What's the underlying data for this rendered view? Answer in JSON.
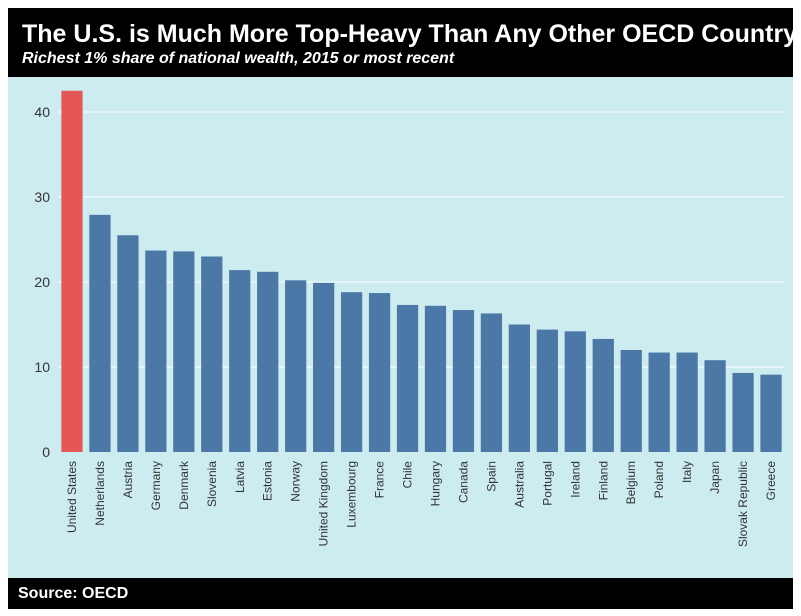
{
  "header": {
    "title": "The U.S. is Much More Top-Heavy Than Any Other OECD Country",
    "subtitle": "Richest 1% share of national wealth, 2015 or most recent"
  },
  "footer": {
    "source": "Source: OECD"
  },
  "colors": {
    "background": "#cdecf0",
    "bar": "#4c78a8",
    "highlight": "#e45756",
    "gridline": "#ffffff",
    "header": "#000000"
  },
  "chart_data": {
    "type": "bar",
    "title": "The U.S. is Much More Top-Heavy Than Any Other OECD Country",
    "subtitle": "Richest 1% share of national wealth, 2015 or most recent",
    "xlabel": "",
    "ylabel": "",
    "ylim": [
      0,
      44
    ],
    "yticks": [
      0,
      10,
      20,
      30,
      40
    ],
    "grid": true,
    "highlight_category": "United States",
    "categories": [
      "United States",
      "Netherlands",
      "Austria",
      "Germany",
      "Denmark",
      "Slovenia",
      "Latvia",
      "Estonia",
      "Norway",
      "United Kingdom",
      "Luxembourg",
      "France",
      "Chile",
      "Hungary",
      "Canada",
      "Spain",
      "Australia",
      "Portugal",
      "Ireland",
      "Finland",
      "Belgium",
      "Poland",
      "Italy",
      "Japan",
      "Slovak Republic",
      "Greece"
    ],
    "values": [
      42.5,
      27.9,
      25.5,
      23.7,
      23.6,
      23.0,
      21.4,
      21.2,
      20.2,
      19.9,
      18.8,
      18.7,
      17.3,
      17.2,
      16.7,
      16.3,
      15.0,
      14.4,
      14.2,
      13.3,
      12.0,
      11.7,
      11.7,
      10.8,
      9.3,
      9.1
    ]
  }
}
